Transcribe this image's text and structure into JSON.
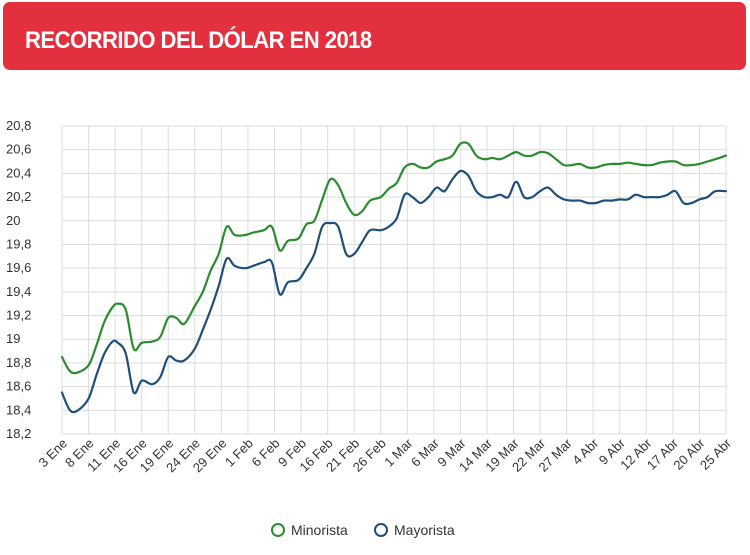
{
  "header": {
    "title": "RECORRIDO DEL DÓLAR EN 2018"
  },
  "colors": {
    "header_bg": "#e3303f",
    "minorista": "#2a8c2f",
    "mayorista": "#1f4e79",
    "grid": "#dcdcdc"
  },
  "chart_data": {
    "type": "line",
    "title": "RECORRIDO DEL DÓLAR EN 2018",
    "xlabel": "",
    "ylabel": "",
    "ylim": [
      18.2,
      20.8
    ],
    "yticks": [
      "18,2",
      "18,4",
      "18,6",
      "18,8",
      "19",
      "19,2",
      "19,4",
      "19,6",
      "19,8",
      "20",
      "20,2",
      "20,4",
      "20,6",
      "20,8"
    ],
    "x_labels": [
      "3 Ene",
      "8 Ene",
      "11 Ene",
      "16 Ene",
      "19 Ene",
      "24 Ene",
      "29 Ene",
      "1 Feb",
      "6 Feb",
      "9 Feb",
      "16 Feb",
      "21 Feb",
      "26 Feb",
      "1 Mar",
      "6 Mar",
      "9 Mar",
      "14 Mar",
      "19 Mar",
      "22 Mar",
      "27 Mar",
      "4 Abr",
      "9 Abr",
      "12 Abr",
      "17 Abr",
      "20 Abr",
      "25 Abr"
    ],
    "grid": true,
    "legend_position": "bottom",
    "series": [
      {
        "name": "Minorista",
        "color": "#2a8c2f",
        "points": [
          [
            0,
            18.85
          ],
          [
            0.3,
            18.73
          ],
          [
            0.6,
            18.72
          ],
          [
            1.0,
            18.78
          ],
          [
            1.3,
            18.95
          ],
          [
            1.6,
            19.15
          ],
          [
            1.9,
            19.27
          ],
          [
            2.1,
            19.3
          ],
          [
            2.4,
            19.25
          ],
          [
            2.7,
            18.92
          ],
          [
            3.0,
            18.97
          ],
          [
            3.4,
            18.98
          ],
          [
            3.7,
            19.02
          ],
          [
            4.0,
            19.18
          ],
          [
            4.3,
            19.18
          ],
          [
            4.6,
            19.13
          ],
          [
            5.0,
            19.28
          ],
          [
            5.3,
            19.4
          ],
          [
            5.6,
            19.58
          ],
          [
            5.9,
            19.72
          ],
          [
            6.2,
            19.95
          ],
          [
            6.5,
            19.88
          ],
          [
            6.9,
            19.88
          ],
          [
            7.2,
            19.9
          ],
          [
            7.6,
            19.92
          ],
          [
            7.9,
            19.95
          ],
          [
            8.2,
            19.75
          ],
          [
            8.5,
            19.83
          ],
          [
            8.9,
            19.85
          ],
          [
            9.2,
            19.97
          ],
          [
            9.5,
            20.0
          ],
          [
            9.8,
            20.18
          ],
          [
            10.1,
            20.35
          ],
          [
            10.4,
            20.3
          ],
          [
            10.7,
            20.15
          ],
          [
            11.0,
            20.05
          ],
          [
            11.3,
            20.08
          ],
          [
            11.6,
            20.17
          ],
          [
            12.0,
            20.2
          ],
          [
            12.3,
            20.27
          ],
          [
            12.6,
            20.32
          ],
          [
            12.9,
            20.45
          ],
          [
            13.2,
            20.48
          ],
          [
            13.5,
            20.45
          ],
          [
            13.8,
            20.45
          ],
          [
            14.1,
            20.5
          ],
          [
            14.4,
            20.52
          ],
          [
            14.7,
            20.55
          ],
          [
            15.0,
            20.65
          ],
          [
            15.3,
            20.65
          ],
          [
            15.6,
            20.55
          ],
          [
            15.9,
            20.52
          ],
          [
            16.2,
            20.53
          ],
          [
            16.5,
            20.52
          ],
          [
            16.8,
            20.55
          ],
          [
            17.1,
            20.58
          ],
          [
            17.4,
            20.55
          ],
          [
            17.7,
            20.55
          ],
          [
            18.0,
            20.58
          ],
          [
            18.3,
            20.57
          ],
          [
            18.6,
            20.52
          ],
          [
            18.9,
            20.47
          ],
          [
            19.2,
            20.47
          ],
          [
            19.5,
            20.48
          ],
          [
            19.8,
            20.45
          ],
          [
            20.1,
            20.45
          ],
          [
            20.4,
            20.47
          ],
          [
            20.7,
            20.48
          ],
          [
            21.0,
            20.48
          ],
          [
            21.3,
            20.49
          ],
          [
            21.6,
            20.48
          ],
          [
            21.9,
            20.47
          ],
          [
            22.2,
            20.47
          ],
          [
            22.5,
            20.49
          ],
          [
            22.8,
            20.5
          ],
          [
            23.1,
            20.5
          ],
          [
            23.4,
            20.47
          ],
          [
            23.7,
            20.47
          ],
          [
            24.0,
            20.48
          ],
          [
            24.3,
            20.5
          ],
          [
            24.6,
            20.52
          ],
          [
            25.0,
            20.55
          ]
        ]
      },
      {
        "name": "Mayorista",
        "color": "#1f4e79",
        "points": [
          [
            0,
            18.55
          ],
          [
            0.3,
            18.4
          ],
          [
            0.6,
            18.4
          ],
          [
            1.0,
            18.5
          ],
          [
            1.3,
            18.7
          ],
          [
            1.6,
            18.88
          ],
          [
            1.9,
            18.98
          ],
          [
            2.1,
            18.97
          ],
          [
            2.4,
            18.88
          ],
          [
            2.7,
            18.55
          ],
          [
            3.0,
            18.65
          ],
          [
            3.4,
            18.62
          ],
          [
            3.7,
            18.68
          ],
          [
            4.0,
            18.85
          ],
          [
            4.3,
            18.82
          ],
          [
            4.6,
            18.82
          ],
          [
            5.0,
            18.92
          ],
          [
            5.3,
            19.08
          ],
          [
            5.6,
            19.25
          ],
          [
            5.9,
            19.45
          ],
          [
            6.2,
            19.68
          ],
          [
            6.5,
            19.62
          ],
          [
            6.9,
            19.6
          ],
          [
            7.2,
            19.62
          ],
          [
            7.6,
            19.65
          ],
          [
            7.9,
            19.65
          ],
          [
            8.2,
            19.38
          ],
          [
            8.5,
            19.48
          ],
          [
            8.9,
            19.5
          ],
          [
            9.2,
            19.6
          ],
          [
            9.5,
            19.72
          ],
          [
            9.8,
            19.95
          ],
          [
            10.1,
            19.98
          ],
          [
            10.4,
            19.95
          ],
          [
            10.7,
            19.72
          ],
          [
            11.0,
            19.72
          ],
          [
            11.3,
            19.82
          ],
          [
            11.6,
            19.92
          ],
          [
            12.0,
            19.92
          ],
          [
            12.3,
            19.95
          ],
          [
            12.6,
            20.02
          ],
          [
            12.9,
            20.22
          ],
          [
            13.2,
            20.2
          ],
          [
            13.5,
            20.15
          ],
          [
            13.8,
            20.2
          ],
          [
            14.1,
            20.28
          ],
          [
            14.4,
            20.25
          ],
          [
            14.7,
            20.35
          ],
          [
            15.0,
            20.42
          ],
          [
            15.3,
            20.38
          ],
          [
            15.6,
            20.25
          ],
          [
            15.9,
            20.2
          ],
          [
            16.2,
            20.2
          ],
          [
            16.5,
            20.22
          ],
          [
            16.8,
            20.2
          ],
          [
            17.1,
            20.33
          ],
          [
            17.4,
            20.2
          ],
          [
            17.7,
            20.2
          ],
          [
            18.0,
            20.25
          ],
          [
            18.3,
            20.28
          ],
          [
            18.6,
            20.22
          ],
          [
            18.9,
            20.18
          ],
          [
            19.2,
            20.17
          ],
          [
            19.5,
            20.17
          ],
          [
            19.8,
            20.15
          ],
          [
            20.1,
            20.15
          ],
          [
            20.4,
            20.17
          ],
          [
            20.7,
            20.17
          ],
          [
            21.0,
            20.18
          ],
          [
            21.3,
            20.18
          ],
          [
            21.6,
            20.22
          ],
          [
            21.9,
            20.2
          ],
          [
            22.2,
            20.2
          ],
          [
            22.5,
            20.2
          ],
          [
            22.8,
            20.22
          ],
          [
            23.1,
            20.25
          ],
          [
            23.4,
            20.15
          ],
          [
            23.7,
            20.15
          ],
          [
            24.0,
            20.18
          ],
          [
            24.3,
            20.2
          ],
          [
            24.6,
            20.25
          ],
          [
            25.0,
            20.25
          ]
        ]
      }
    ]
  }
}
